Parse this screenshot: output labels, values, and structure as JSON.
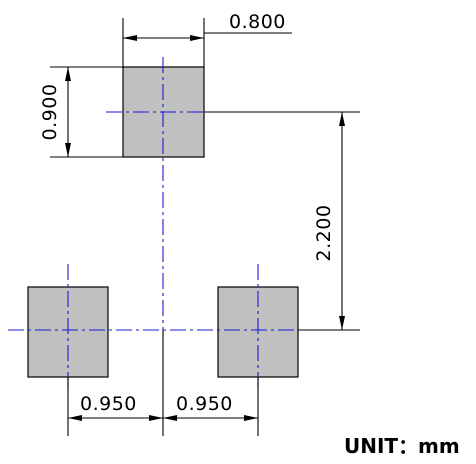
{
  "dimensions": {
    "pad_width": "0.800",
    "pad_height": "0.900",
    "pitch_vertical": "2.200",
    "pitch_left": "0.950",
    "pitch_right": "0.950"
  },
  "unit": "UNIT：mm",
  "colors": {
    "pad_fill": "#c0c0c0",
    "center_line": "#1a1ad6",
    "dimension_line": "#000000"
  }
}
